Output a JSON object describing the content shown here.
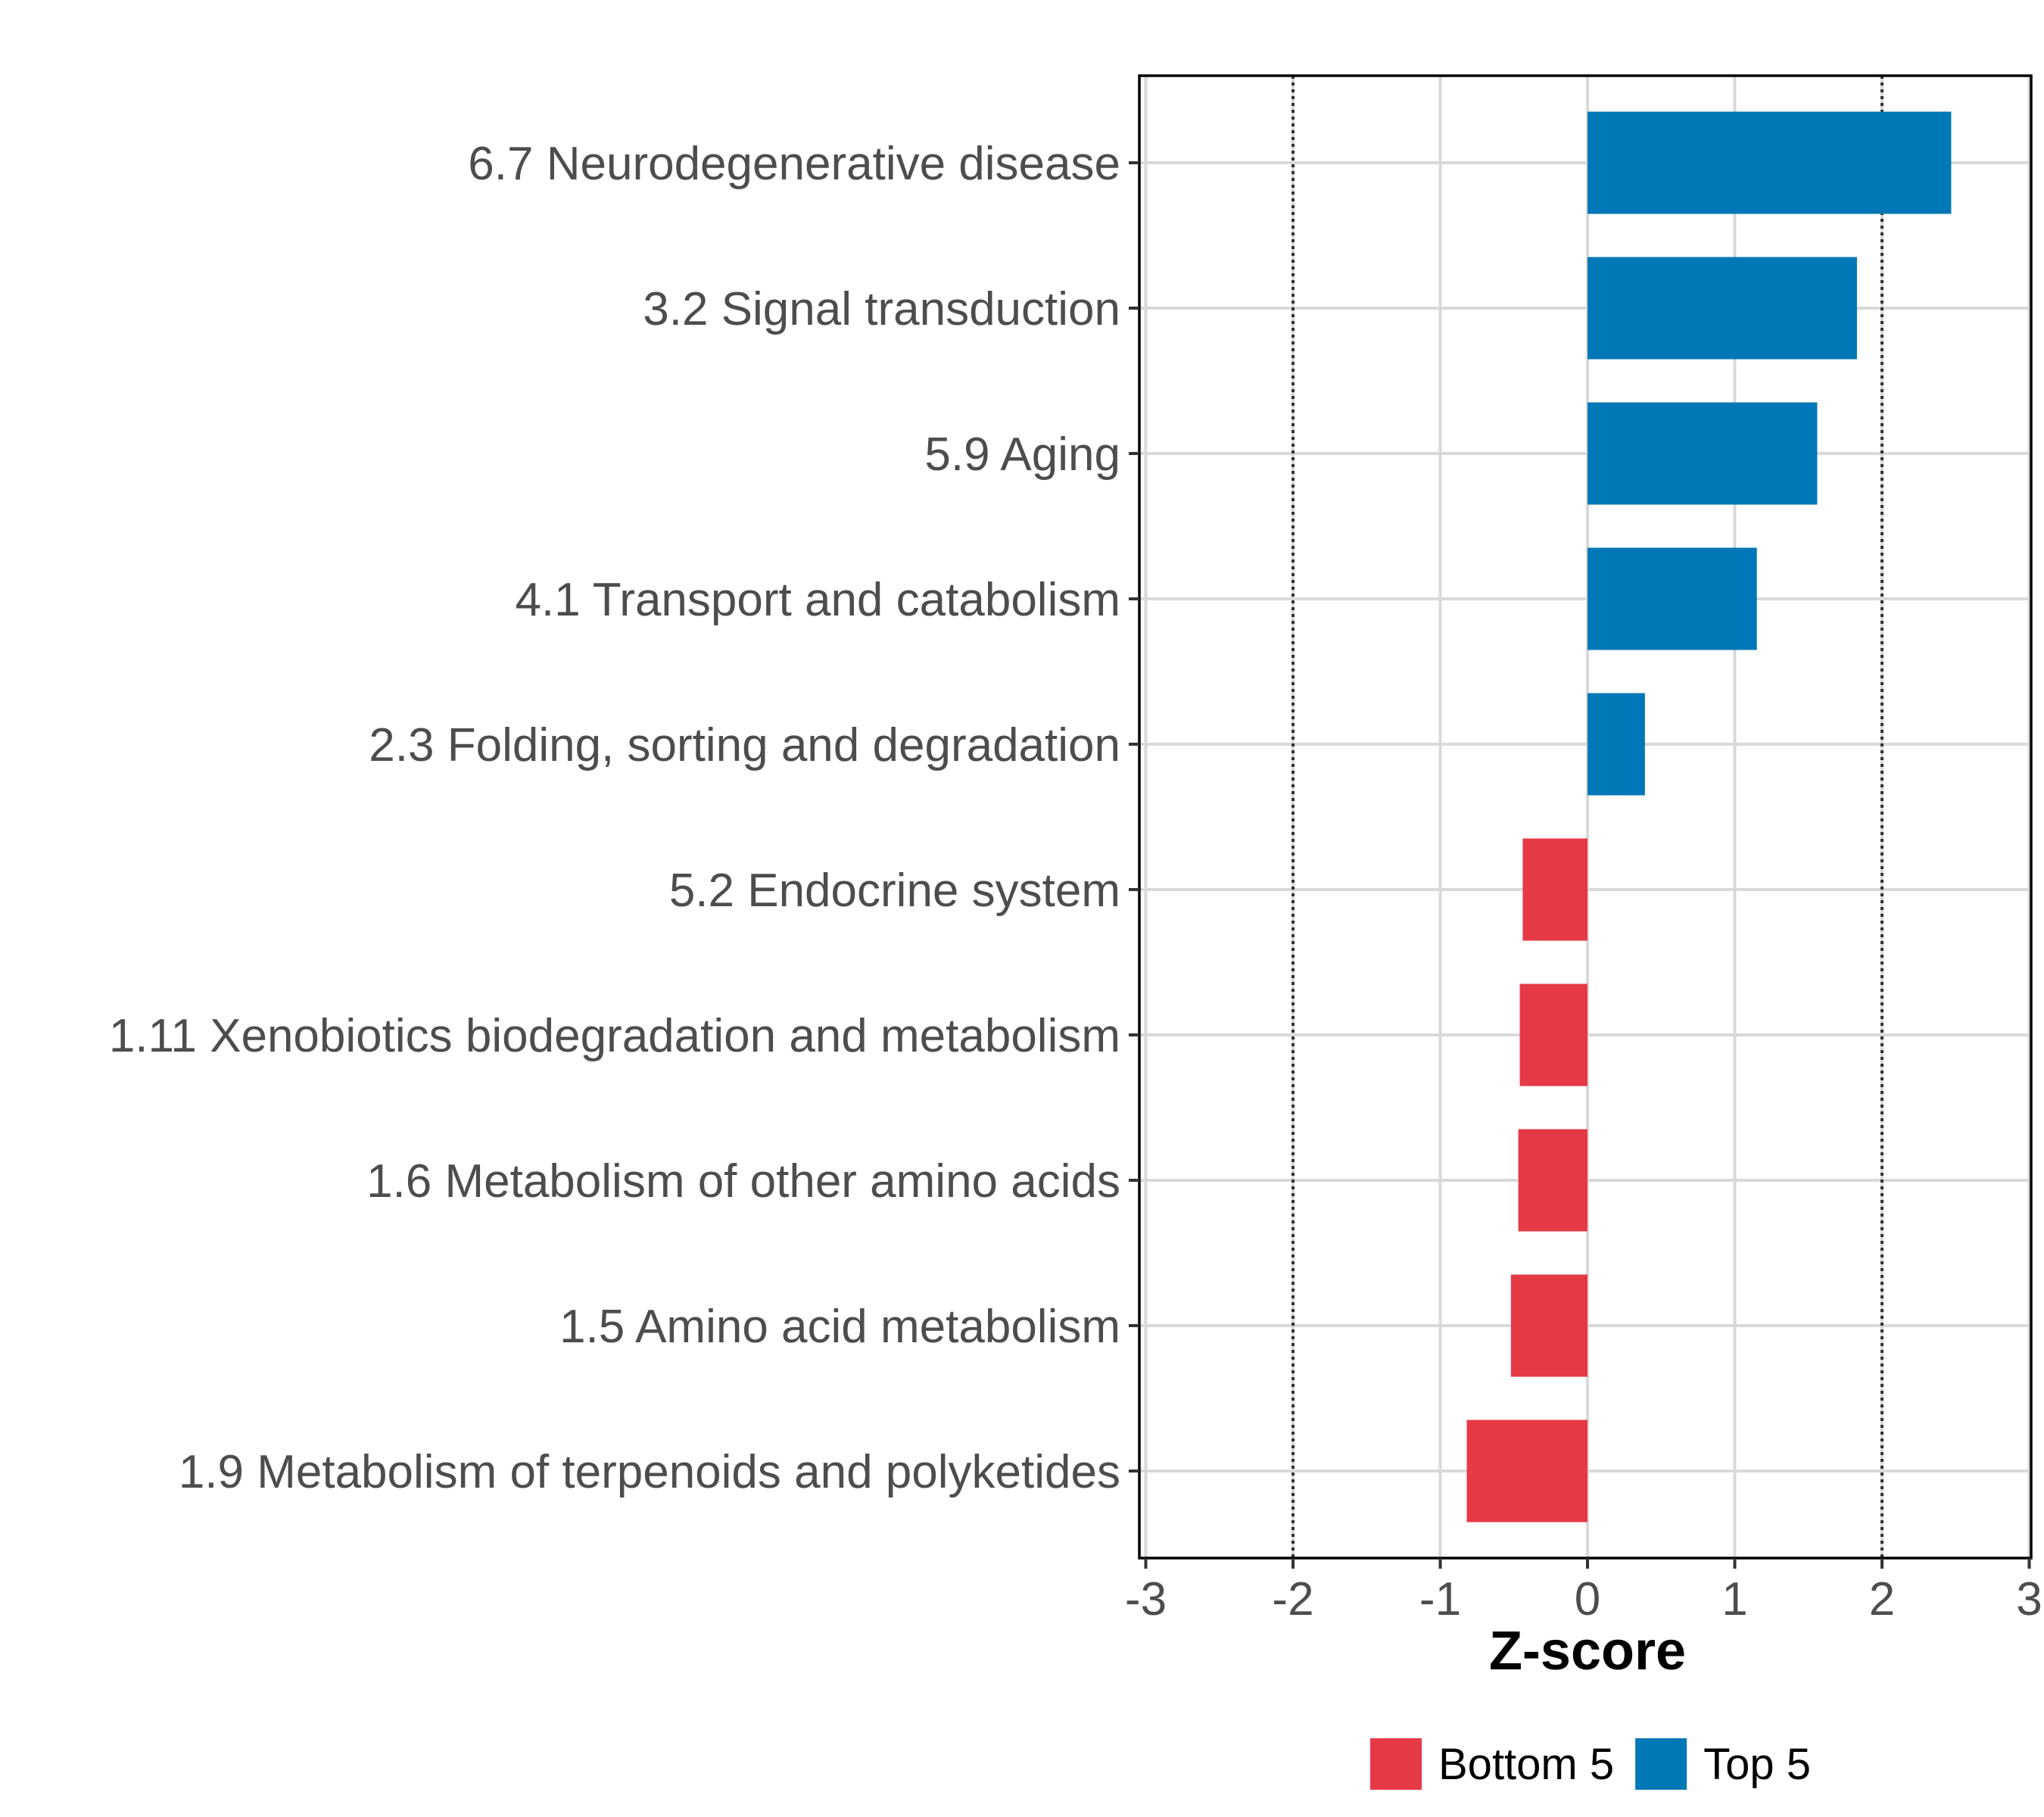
{
  "chart_data": {
    "type": "bar",
    "orientation": "horizontal",
    "categories": [
      "6.7 Neurodegenerative disease",
      "3.2 Signal transduction",
      "5.9 Aging",
      "4.1 Transport and catabolism",
      "2.3 Folding, sorting and degradation",
      "5.2 Endocrine system",
      "1.11 Xenobiotics biodegradation and metabolism",
      "1.6 Metabolism of other amino acids",
      "1.5 Amino acid metabolism",
      "1.9 Metabolism of terpenoids and polyketides"
    ],
    "values": [
      2.47,
      1.83,
      1.56,
      1.15,
      0.39,
      -0.44,
      -0.46,
      -0.47,
      -0.52,
      -0.82
    ],
    "groups": [
      "Top 5",
      "Top 5",
      "Top 5",
      "Top 5",
      "Top 5",
      "Bottom 5",
      "Bottom 5",
      "Bottom 5",
      "Bottom 5",
      "Bottom 5"
    ],
    "xlabel": "Z-score",
    "ylabel": "",
    "xlim": [
      -3,
      3
    ],
    "xticks": [
      -3,
      -2,
      -1,
      0,
      1,
      2,
      3
    ],
    "xtick_labels": [
      "-3",
      "-2",
      "-1",
      "0",
      "1",
      "2",
      "3"
    ],
    "reference_lines": [
      -2,
      2
    ],
    "grid": true,
    "legend": {
      "placement": "bottom",
      "entries": [
        {
          "label": "Bottom 5",
          "color": "#e63946"
        },
        {
          "label": "Top 5",
          "color": "#0077b6"
        }
      ]
    }
  }
}
